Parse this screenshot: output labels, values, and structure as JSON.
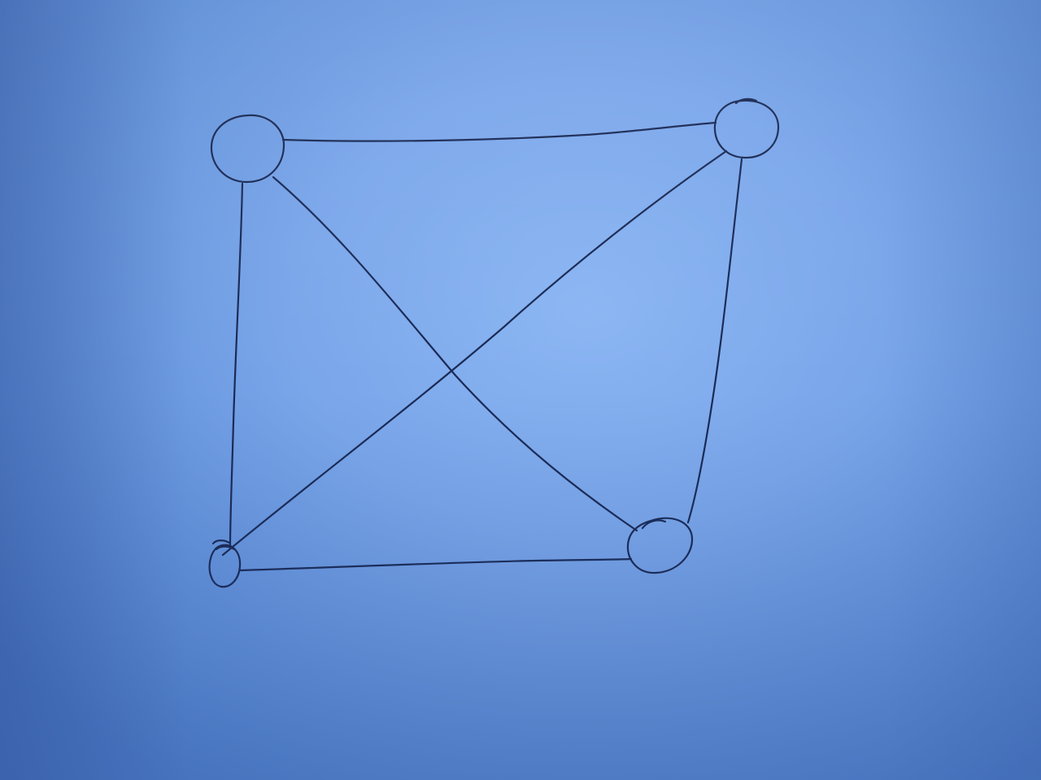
{
  "diagram": {
    "type": "complete-graph",
    "description_kind": "hand-drawn",
    "nodes": [
      {
        "id": "top-left"
      },
      {
        "id": "top-right"
      },
      {
        "id": "bottom-left"
      },
      {
        "id": "bottom-right"
      }
    ],
    "edges": [
      {
        "from": "top-left",
        "to": "top-right"
      },
      {
        "from": "top-left",
        "to": "bottom-left"
      },
      {
        "from": "top-left",
        "to": "bottom-right"
      },
      {
        "from": "top-right",
        "to": "bottom-left"
      },
      {
        "from": "top-right",
        "to": "bottom-right"
      },
      {
        "from": "bottom-left",
        "to": "bottom-right"
      }
    ],
    "colors": {
      "ink": "#1a2a55",
      "paper": "#7aa6ea"
    }
  }
}
